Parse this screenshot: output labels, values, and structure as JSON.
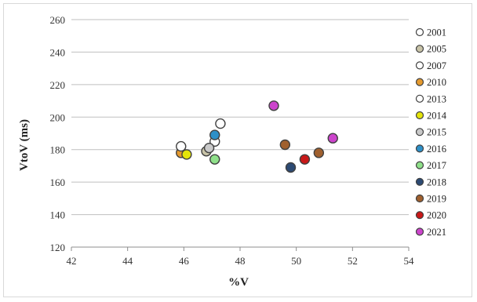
{
  "chart_data": {
    "type": "scatter",
    "title": "",
    "xlabel": "%V",
    "ylabel": "VtoV (ms)",
    "xlim": [
      42,
      54
    ],
    "ylim": [
      120,
      260
    ],
    "xticks": [
      42,
      44,
      46,
      48,
      50,
      52,
      54
    ],
    "yticks": [
      120,
      140,
      160,
      180,
      200,
      220,
      240,
      260
    ],
    "grid": "horizontal",
    "legend_position": "right",
    "series": [
      {
        "name": "2001",
        "color": "#ffffff",
        "points": [
          [
            47.3,
            196
          ]
        ]
      },
      {
        "name": "2005",
        "color": "#c8c3a8",
        "points": [
          [
            46.8,
            179
          ]
        ]
      },
      {
        "name": "2007",
        "color": "#ffffff",
        "points": [
          [
            47.1,
            185
          ]
        ]
      },
      {
        "name": "2010",
        "color": "#e59a2e",
        "points": [
          [
            45.9,
            178
          ]
        ]
      },
      {
        "name": "2013",
        "color": "#ffffff",
        "points": [
          [
            45.9,
            182
          ]
        ]
      },
      {
        "name": "2014",
        "color": "#e4e40a",
        "points": [
          [
            46.1,
            177
          ]
        ]
      },
      {
        "name": "2015",
        "color": "#c9c9c9",
        "points": [
          [
            46.9,
            181
          ]
        ]
      },
      {
        "name": "2016",
        "color": "#2e90c8",
        "points": [
          [
            47.1,
            189
          ]
        ]
      },
      {
        "name": "2017",
        "color": "#8fe08a",
        "points": [
          [
            47.1,
            174
          ]
        ]
      },
      {
        "name": "2018",
        "color": "#2c4a73",
        "points": [
          [
            49.8,
            169
          ]
        ]
      },
      {
        "name": "2019",
        "color": "#a0602e",
        "points": [
          [
            49.6,
            183
          ],
          [
            50.8,
            178
          ]
        ]
      },
      {
        "name": "2020",
        "color": "#c81818",
        "points": [
          [
            50.3,
            174
          ]
        ]
      },
      {
        "name": "2021",
        "color": "#cc44cc",
        "points": [
          [
            49.2,
            207
          ],
          [
            51.3,
            187
          ]
        ]
      }
    ]
  }
}
